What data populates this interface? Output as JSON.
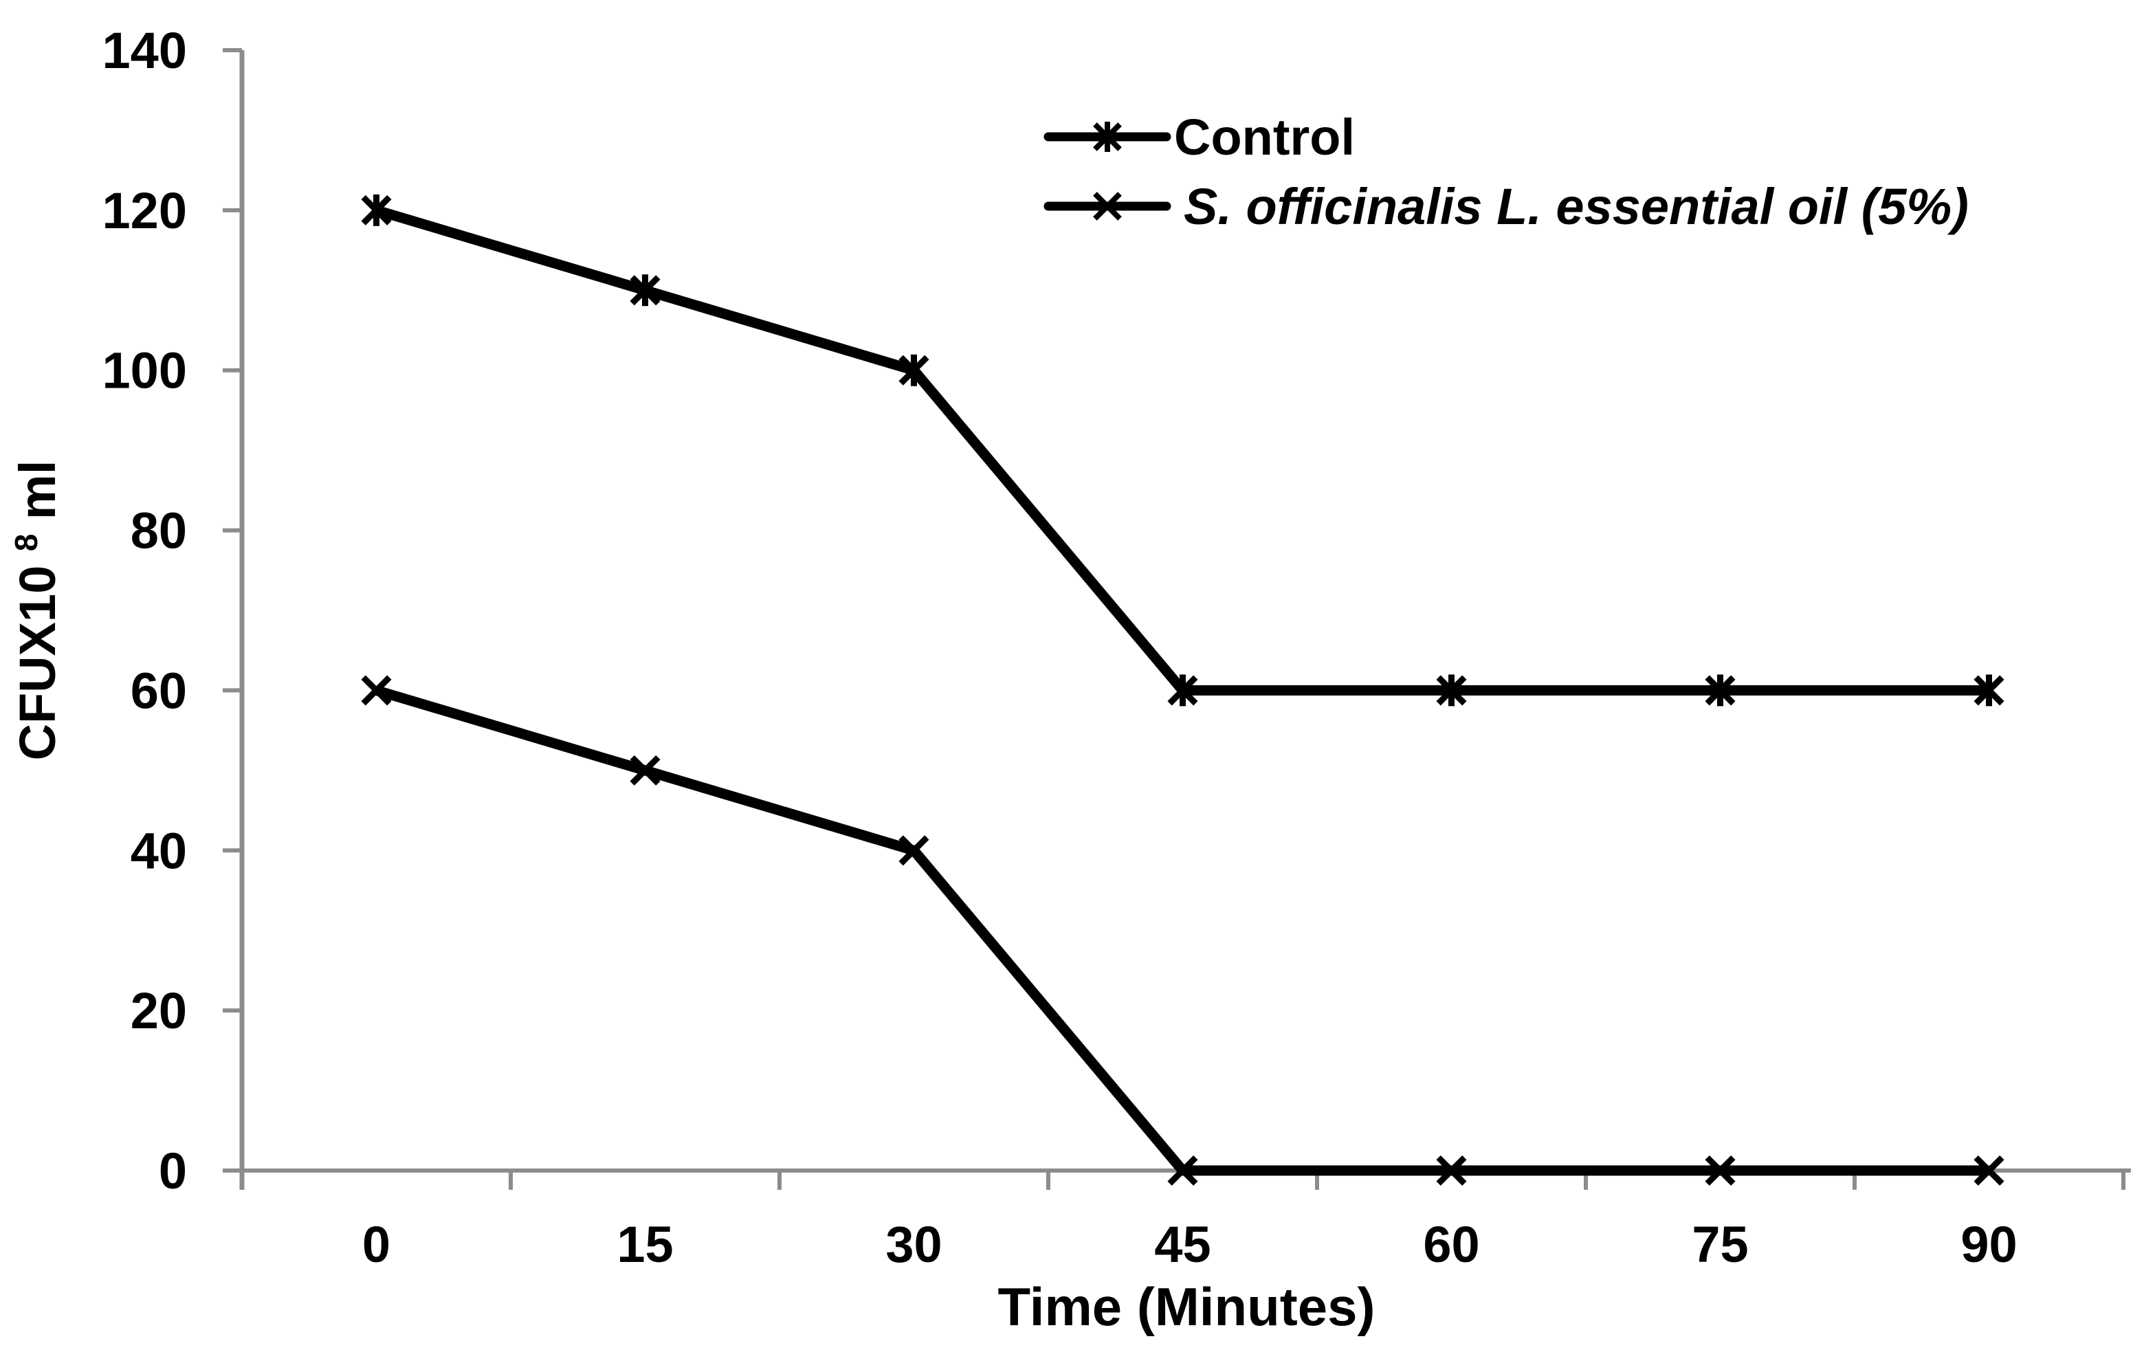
{
  "chart_data": {
    "type": "line",
    "title": "",
    "xlabel": "Time (Minutes)",
    "ylabel_prefix": "CFUX10",
    "ylabel_superscript": "8",
    "ylabel_suffix": " ml",
    "categories": [
      "0",
      "15",
      "30",
      "45",
      "60",
      "75",
      "90"
    ],
    "series": [
      {
        "name": "Control",
        "values": [
          120,
          110,
          100,
          60,
          60,
          60,
          60
        ],
        "marker": "star6",
        "italic": false
      },
      {
        "name": "S. officinalis L. essential oil (5%)",
        "values": [
          60,
          50,
          40,
          0,
          0,
          0,
          0
        ],
        "marker": "x",
        "italic": true
      }
    ],
    "ylim": [
      0,
      140
    ],
    "ytick_step": 20,
    "ytick_labels": [
      "0",
      "20",
      "40",
      "60",
      "80",
      "100",
      "120",
      "140"
    ],
    "grid": false,
    "legend_position": "top-right-inside",
    "colors": {
      "series_line": "#000000",
      "axis_line": "#8c8c8c",
      "text": "#000000",
      "background": "#ffffff"
    }
  }
}
